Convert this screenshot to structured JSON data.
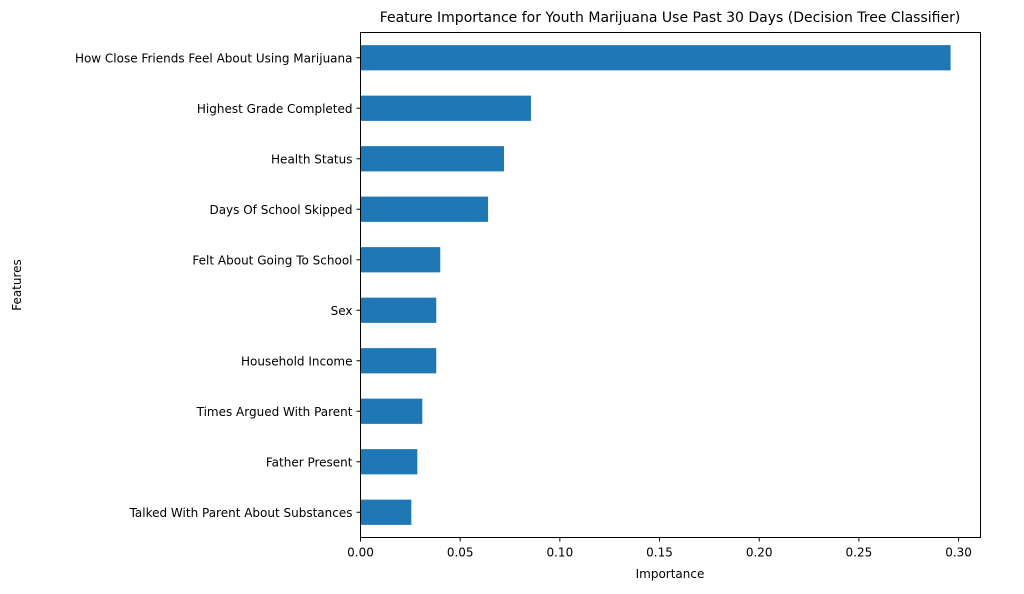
{
  "chart_data": {
    "type": "bar",
    "orientation": "horizontal",
    "title": "Feature Importance for Youth Marijuana Use Past 30 Days (Decision Tree Classifier)",
    "xlabel": "Importance",
    "ylabel": "Features",
    "xlim": [
      0,
      0.311
    ],
    "x_ticks": [
      0.0,
      0.05,
      0.1,
      0.15,
      0.2,
      0.25,
      0.3
    ],
    "x_tick_labels": [
      "0.00",
      "0.05",
      "0.10",
      "0.15",
      "0.20",
      "0.25",
      "0.30"
    ],
    "bar_color": "#1f77b4",
    "grid": false,
    "legend": "none",
    "categories": [
      "How Close Friends Feel About Using Marijuana",
      "Highest Grade Completed",
      "Health Status",
      "Days Of School Skipped",
      "Felt About Going To School",
      "Sex",
      "Household Income",
      "Times Argued With Parent",
      "Father Present",
      "Talked With Parent About Substances"
    ],
    "values": [
      0.296,
      0.0855,
      0.072,
      0.064,
      0.04,
      0.038,
      0.038,
      0.031,
      0.0285,
      0.0255
    ]
  }
}
